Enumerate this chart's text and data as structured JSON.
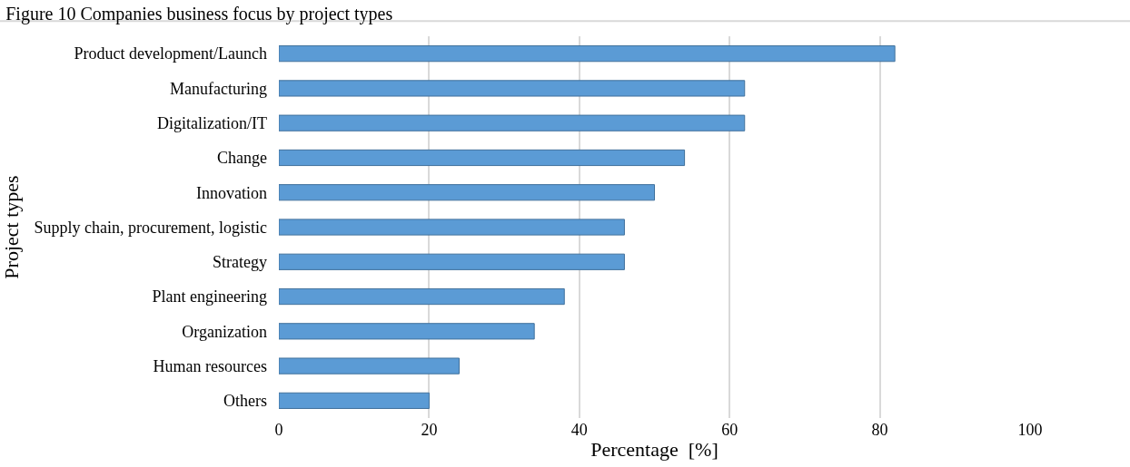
{
  "chart_data": {
    "type": "bar",
    "orientation": "horizontal",
    "title": "Figure 10 Companies business focus by project types",
    "xlabel": "Percentage  [%]",
    "ylabel": "Project types",
    "categories": [
      "Product development/Launch",
      "Manufacturing",
      "Digitalization/IT",
      "Change",
      "Innovation",
      "Supply chain, procurement, logistic",
      "Strategy",
      "Plant engineering",
      "Organization",
      "Human resources",
      "Others"
    ],
    "values": [
      82,
      62,
      62,
      54,
      50,
      46,
      46,
      38,
      34,
      24,
      20
    ],
    "color": "#5b9bd5",
    "xlim": [
      0,
      100
    ],
    "xticks": [
      0,
      20,
      40,
      60,
      80,
      100
    ],
    "grid": "x"
  }
}
